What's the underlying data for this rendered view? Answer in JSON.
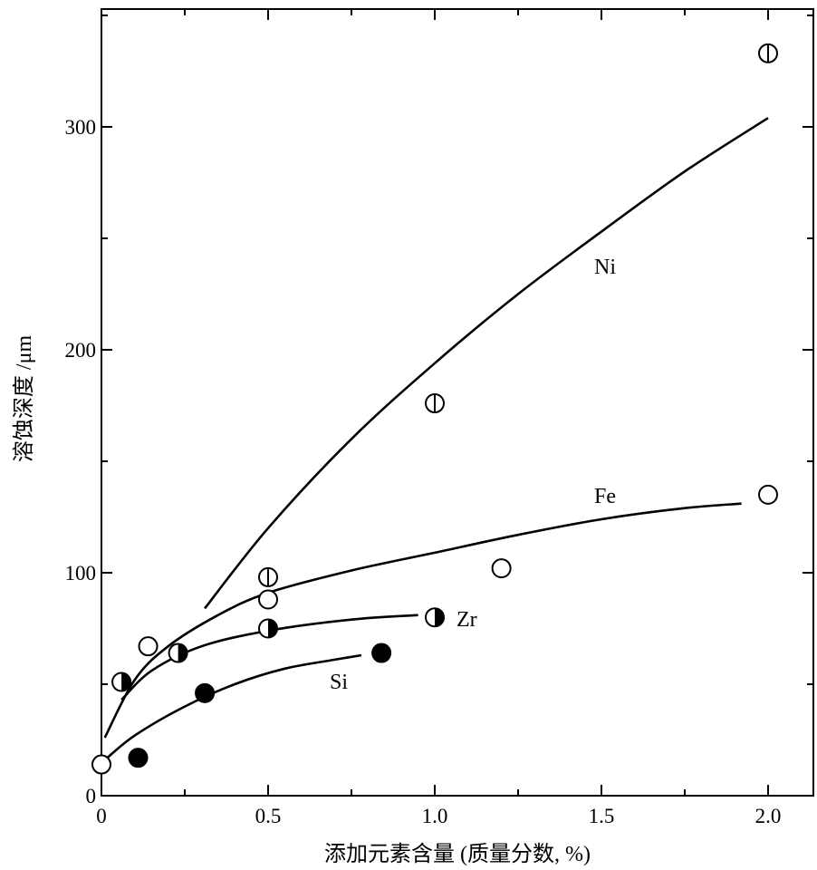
{
  "chart_data": {
    "type": "scatter",
    "xlabel": "添加元素含量 (质量分数, %)",
    "ylabel": "溶蚀深度 /μm",
    "xlim": [
      0,
      2.15
    ],
    "ylim": [
      0,
      350
    ],
    "xticks": [
      0,
      0.5,
      1.0,
      1.5,
      2.0
    ],
    "xtick_labels": [
      "0",
      "0.5",
      "1.0",
      "1.5",
      "2.0"
    ],
    "yticks": [
      0,
      100,
      200,
      300
    ],
    "ytick_labels": [
      "0",
      "100",
      "200",
      "300"
    ],
    "grid": false,
    "series": [
      {
        "name": "Ni",
        "marker": "circle-vertical-bar",
        "points": [
          {
            "x": 0.5,
            "y": 98
          },
          {
            "x": 1.0,
            "y": 176
          },
          {
            "x": 2.0,
            "y": 333
          }
        ],
        "curve": [
          {
            "x": 0.31,
            "y": 84
          },
          {
            "x": 0.5,
            "y": 120
          },
          {
            "x": 0.75,
            "y": 160
          },
          {
            "x": 1.0,
            "y": 194
          },
          {
            "x": 1.25,
            "y": 225
          },
          {
            "x": 1.5,
            "y": 253
          },
          {
            "x": 1.75,
            "y": 280
          },
          {
            "x": 2.0,
            "y": 304
          }
        ]
      },
      {
        "name": "Fe",
        "marker": "open-circle",
        "points": [
          {
            "x": 0,
            "y": 14
          },
          {
            "x": 0.14,
            "y": 67
          },
          {
            "x": 0.5,
            "y": 88
          },
          {
            "x": 1.2,
            "y": 102
          },
          {
            "x": 2.0,
            "y": 135
          }
        ],
        "curve": [
          {
            "x": 0.01,
            "y": 26
          },
          {
            "x": 0.1,
            "y": 52
          },
          {
            "x": 0.2,
            "y": 67
          },
          {
            "x": 0.35,
            "y": 81
          },
          {
            "x": 0.5,
            "y": 91
          },
          {
            "x": 0.75,
            "y": 101
          },
          {
            "x": 1.0,
            "y": 109
          },
          {
            "x": 1.25,
            "y": 117
          },
          {
            "x": 1.5,
            "y": 124
          },
          {
            "x": 1.75,
            "y": 129
          },
          {
            "x": 1.92,
            "y": 131
          }
        ]
      },
      {
        "name": "Zr",
        "marker": "half-filled-circle",
        "points": [
          {
            "x": 0.06,
            "y": 51
          },
          {
            "x": 0.23,
            "y": 64
          },
          {
            "x": 0.5,
            "y": 75
          },
          {
            "x": 1.0,
            "y": 80
          }
        ],
        "curve": [
          {
            "x": 0.06,
            "y": 43
          },
          {
            "x": 0.15,
            "y": 56
          },
          {
            "x": 0.3,
            "y": 67
          },
          {
            "x": 0.5,
            "y": 74
          },
          {
            "x": 0.75,
            "y": 79
          },
          {
            "x": 0.95,
            "y": 81
          }
        ]
      },
      {
        "name": "Si",
        "marker": "filled-circle",
        "points": [
          {
            "x": 0.11,
            "y": 17
          },
          {
            "x": 0.31,
            "y": 46
          },
          {
            "x": 0.84,
            "y": 64
          }
        ],
        "curve": [
          {
            "x": 0.01,
            "y": 16
          },
          {
            "x": 0.1,
            "y": 27
          },
          {
            "x": 0.25,
            "y": 40
          },
          {
            "x": 0.4,
            "y": 50
          },
          {
            "x": 0.55,
            "y": 57
          },
          {
            "x": 0.7,
            "y": 61
          },
          {
            "x": 0.78,
            "y": 63
          }
        ]
      }
    ]
  }
}
